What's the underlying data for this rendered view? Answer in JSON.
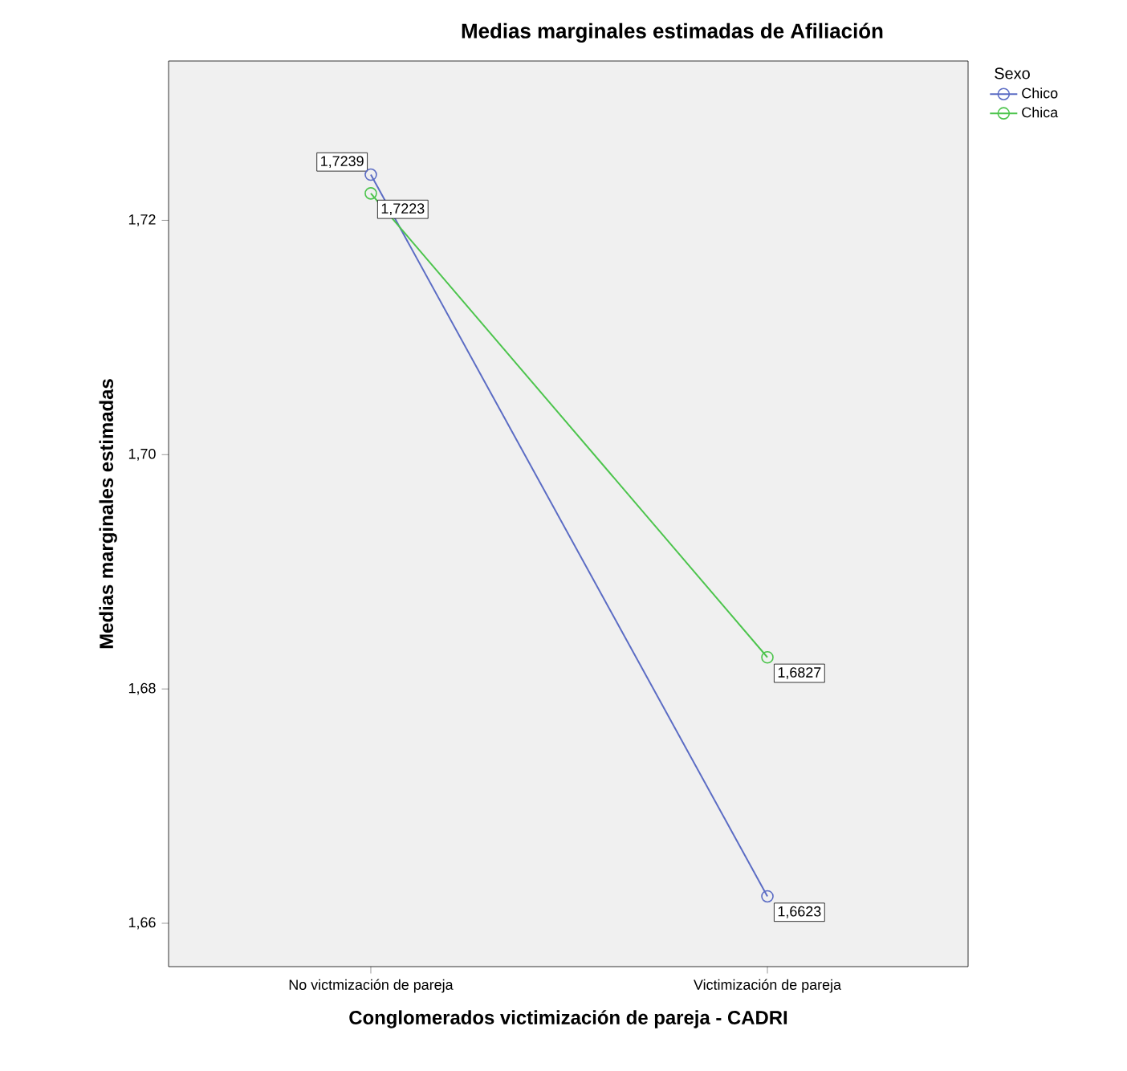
{
  "chart_data": {
    "type": "line",
    "title": "Medias marginales estimadas de Afiliación",
    "xlabel": "Conglomerados victimización de pareja - CADRI",
    "ylabel": "Medias marginales estimadas",
    "legend_title": "Sexo",
    "categories": [
      "No victmización de pareja",
      "Victimización de pareja"
    ],
    "series": [
      {
        "name": "Chico",
        "color": "#5b6cc4",
        "values": [
          1.7239,
          1.6623
        ],
        "value_labels": [
          "1,7239",
          "1,6623"
        ]
      },
      {
        "name": "Chica",
        "color": "#4cc44c",
        "values": [
          1.7223,
          1.6827
        ],
        "value_labels": [
          "1,7223",
          "1,6827"
        ]
      }
    ],
    "ylim": [
      1.6563,
      1.7336
    ],
    "yticks": [
      {
        "value": 1.66,
        "label": "1,66"
      },
      {
        "value": 1.68,
        "label": "1,68"
      },
      {
        "value": 1.7,
        "label": "1,70"
      },
      {
        "value": 1.72,
        "label": "1,72"
      }
    ],
    "grid": false,
    "legend": "right",
    "marker": "circle",
    "line_style": "solid"
  }
}
